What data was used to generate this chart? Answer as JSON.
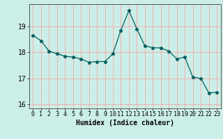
{
  "x": [
    0,
    1,
    2,
    3,
    4,
    5,
    6,
    7,
    8,
    9,
    10,
    11,
    12,
    13,
    14,
    15,
    16,
    17,
    18,
    19,
    20,
    21,
    22,
    23
  ],
  "y": [
    18.65,
    18.45,
    18.05,
    17.95,
    17.85,
    17.82,
    17.75,
    17.62,
    17.65,
    17.65,
    17.95,
    18.85,
    19.6,
    18.9,
    18.25,
    18.18,
    18.17,
    18.05,
    17.75,
    17.82,
    17.05,
    17.0,
    16.45,
    16.47
  ],
  "line_color": "#006060",
  "marker": "*",
  "marker_size": 3.5,
  "bg_color": "#cceee8",
  "grid_color": "#ff9999",
  "xlabel": "Humidex (Indice chaleur)",
  "ylim": [
    15.85,
    19.85
  ],
  "xlim": [
    -0.5,
    23.5
  ],
  "yticks": [
    16,
    17,
    18,
    19
  ],
  "xticks": [
    0,
    1,
    2,
    3,
    4,
    5,
    6,
    7,
    8,
    9,
    10,
    11,
    12,
    13,
    14,
    15,
    16,
    17,
    18,
    19,
    20,
    21,
    22,
    23
  ],
  "tick_fontsize": 6.0,
  "xlabel_fontsize": 7.0,
  "ylabel_fontsize": 7.0
}
